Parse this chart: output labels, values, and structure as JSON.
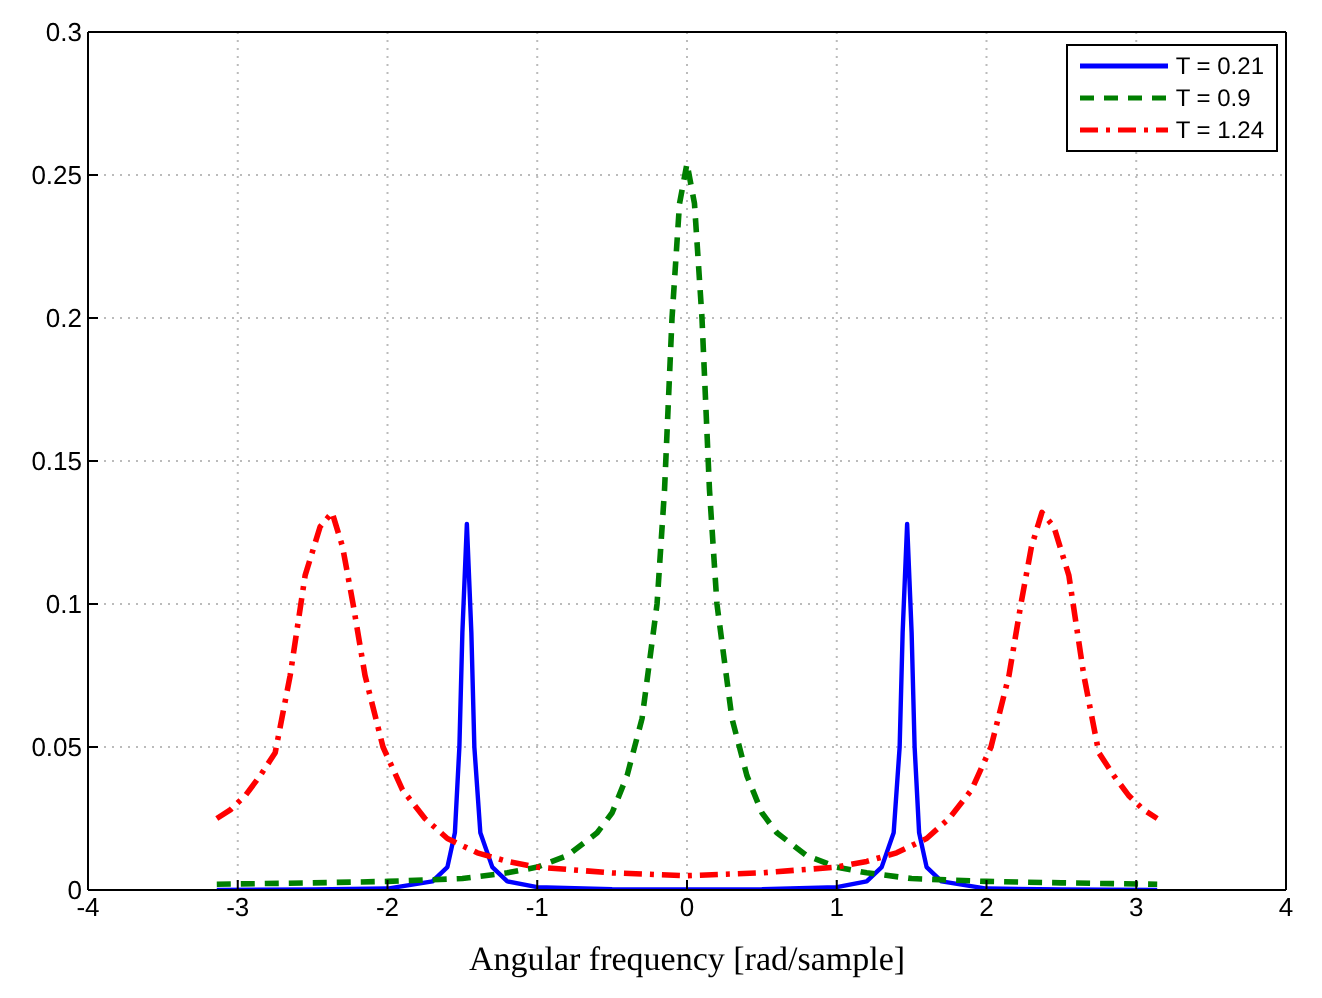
{
  "chart_data": {
    "type": "line",
    "xlabel": "Angular frequency [rad/sample]",
    "xlim": [
      -4,
      4
    ],
    "xticks": [
      -4,
      -3,
      -2,
      -1,
      0,
      1,
      2,
      3,
      4
    ],
    "ylim": [
      0,
      0.3
    ],
    "yticks": [
      0,
      0.05,
      0.1,
      0.15,
      0.2,
      0.25,
      0.3
    ],
    "grid": true,
    "legend": "top right",
    "marker": "none",
    "series": [
      {
        "name": "T = 0.21",
        "color": "#0000ff",
        "line_style": "solid",
        "x": [
          -3.14,
          -2.5,
          -2,
          -1.7,
          -1.6,
          -1.55,
          -1.52,
          -1.5,
          -1.47,
          -1.44,
          -1.42,
          -1.38,
          -1.3,
          -1.2,
          -1,
          -0.5,
          0,
          0.5,
          1,
          1.2,
          1.3,
          1.38,
          1.42,
          1.44,
          1.47,
          1.5,
          1.52,
          1.55,
          1.6,
          1.7,
          2,
          2.5,
          3.14
        ],
        "values": [
          0,
          0.0002,
          0.0005,
          0.003,
          0.008,
          0.02,
          0.05,
          0.09,
          0.128,
          0.09,
          0.05,
          0.02,
          0.008,
          0.003,
          0.001,
          0.0003,
          0.0002,
          0.0003,
          0.001,
          0.003,
          0.008,
          0.02,
          0.05,
          0.09,
          0.128,
          0.09,
          0.05,
          0.02,
          0.008,
          0.003,
          0.0005,
          0.0002,
          0
        ]
      },
      {
        "name": "T = 0.9",
        "color": "#007f00",
        "line_style": "dashed",
        "x": [
          -3.14,
          -2.5,
          -2,
          -1.5,
          -1.2,
          -1,
          -0.8,
          -0.6,
          -0.5,
          -0.4,
          -0.3,
          -0.2,
          -0.15,
          -0.1,
          -0.05,
          0,
          0.05,
          0.1,
          0.15,
          0.2,
          0.3,
          0.4,
          0.5,
          0.6,
          0.8,
          1,
          1.2,
          1.5,
          2,
          2.5,
          3.14
        ],
        "values": [
          0.002,
          0.0025,
          0.003,
          0.004,
          0.006,
          0.008,
          0.012,
          0.02,
          0.027,
          0.04,
          0.06,
          0.1,
          0.14,
          0.2,
          0.24,
          0.254,
          0.24,
          0.2,
          0.14,
          0.1,
          0.06,
          0.04,
          0.027,
          0.02,
          0.012,
          0.008,
          0.006,
          0.004,
          0.003,
          0.0025,
          0.002
        ]
      },
      {
        "name": "T = 1.24",
        "color": "#ff0000",
        "line_style": "dashdot",
        "x": [
          -3.14,
          -3.05,
          -2.95,
          -2.85,
          -2.75,
          -2.65,
          -2.55,
          -2.45,
          -2.37,
          -2.3,
          -2.23,
          -2.15,
          -2.03,
          -1.9,
          -1.75,
          -1.6,
          -1.4,
          -1.2,
          -1,
          -0.5,
          0,
          0.5,
          1,
          1.2,
          1.4,
          1.6,
          1.75,
          1.9,
          2.03,
          2.15,
          2.23,
          2.3,
          2.37,
          2.45,
          2.55,
          2.65,
          2.75,
          2.85,
          2.95,
          3.05,
          3.14
        ],
        "values": [
          0.025,
          0.028,
          0.033,
          0.04,
          0.048,
          0.075,
          0.11,
          0.127,
          0.132,
          0.12,
          0.1,
          0.075,
          0.05,
          0.035,
          0.025,
          0.018,
          0.013,
          0.01,
          0.008,
          0.006,
          0.005,
          0.006,
          0.008,
          0.01,
          0.013,
          0.018,
          0.025,
          0.035,
          0.05,
          0.075,
          0.1,
          0.12,
          0.132,
          0.127,
          0.11,
          0.075,
          0.048,
          0.04,
          0.033,
          0.028,
          0.025
        ]
      }
    ]
  }
}
